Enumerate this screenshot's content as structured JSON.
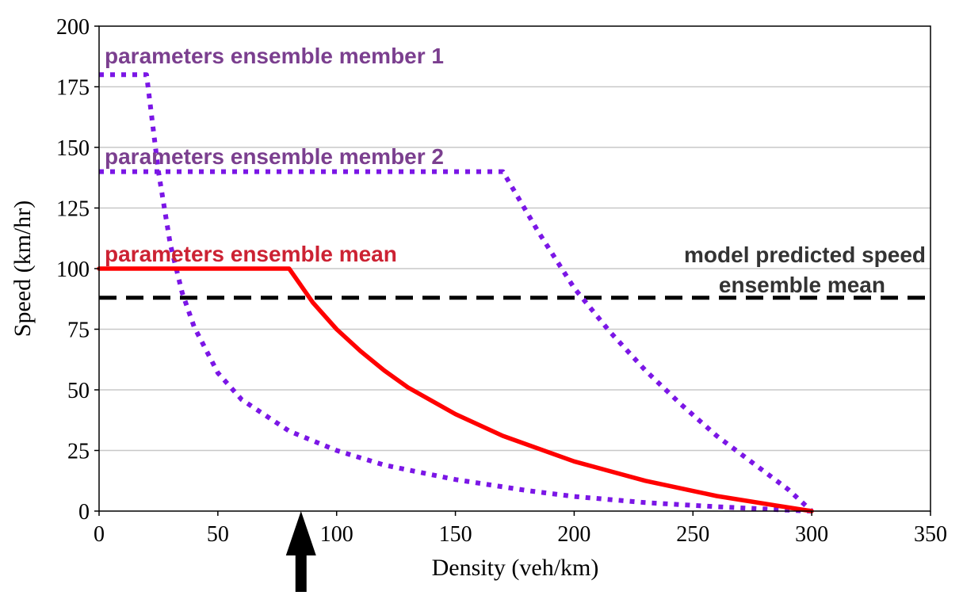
{
  "chart_data": {
    "type": "line",
    "xlabel": "Density (veh/km)",
    "ylabel": "Speed (km/hr)",
    "xlim": [
      0,
      350
    ],
    "ylim": [
      0,
      200
    ],
    "xticks": [
      0,
      50,
      100,
      150,
      200,
      250,
      300,
      350
    ],
    "yticks": [
      0,
      25,
      50,
      75,
      100,
      125,
      150,
      175,
      200
    ],
    "grid": "horizontal",
    "colors": {
      "mean": "#ff0000",
      "member": "#7b16e6",
      "predicted": "#000000",
      "member_label": "#7b3f8f",
      "mean_label": "#cc2233",
      "predicted_label": "#333333"
    },
    "series": [
      {
        "name": "parameters ensemble member 1",
        "style": "dotted",
        "color_key": "member",
        "x": [
          0,
          20,
          25,
          30,
          35,
          40,
          50,
          60,
          80,
          100,
          120,
          150,
          180,
          200,
          230,
          260,
          290,
          300
        ],
        "y": [
          180,
          180,
          140,
          110,
          90,
          76,
          57,
          46,
          33,
          25,
          19,
          13,
          8.5,
          6,
          3.5,
          1.8,
          0.4,
          0
        ]
      },
      {
        "name": "parameters ensemble member 2",
        "style": "dotted",
        "color_key": "member",
        "x": [
          0,
          170,
          185,
          200,
          215,
          230,
          245,
          260,
          275,
          290,
          300
        ],
        "y": [
          140,
          140,
          115,
          92,
          74,
          58,
          44,
          31,
          20,
          9,
          0
        ]
      },
      {
        "name": "parameters ensemble mean",
        "style": "solid",
        "color_key": "mean",
        "x": [
          0,
          80,
          85,
          90,
          100,
          110,
          120,
          130,
          150,
          170,
          200,
          230,
          260,
          290,
          300
        ],
        "y": [
          100,
          100,
          93,
          86,
          75,
          66,
          58,
          51,
          40,
          31,
          20.5,
          12.5,
          6.2,
          1.5,
          0
        ]
      },
      {
        "name": "model predicted speed ensemble mean",
        "style": "dashed",
        "color_key": "predicted",
        "x": [
          0,
          350
        ],
        "y": [
          88,
          88
        ]
      }
    ],
    "annotations": [
      {
        "key": "member1",
        "text": "parameters ensemble member 1",
        "color_key": "member_label"
      },
      {
        "key": "member2",
        "text": "parameters ensemble member 2",
        "color_key": "member_label"
      },
      {
        "key": "mean",
        "text": "parameters ensemble mean",
        "color_key": "mean_label"
      },
      {
        "key": "predicted_line1",
        "text": "model predicted speed",
        "color_key": "predicted_label"
      },
      {
        "key": "predicted_line2",
        "text": "ensemble mean",
        "color_key": "predicted_label"
      }
    ],
    "marker": {
      "type": "up-arrow",
      "x": 85
    }
  }
}
